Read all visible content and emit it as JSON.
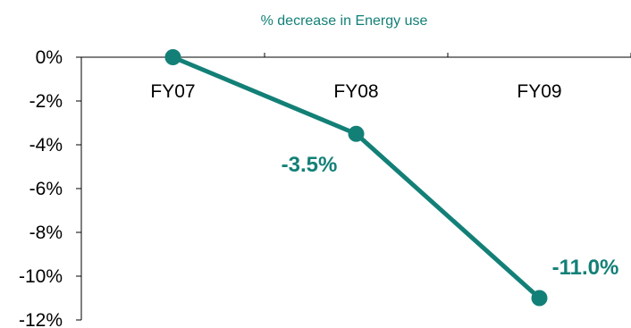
{
  "chart_data": {
    "type": "line",
    "title": "% decrease in Energy use",
    "categories": [
      "FY07",
      "FY08",
      "FY09"
    ],
    "series": [
      {
        "values": [
          0.0,
          -3.5,
          -11.0
        ],
        "labels": [
          "",
          "-3.5%",
          "-11.0%"
        ]
      }
    ],
    "yticks": [
      "0%",
      "-2%",
      "-4%",
      "-6%",
      "-8%",
      "-10%",
      "-12%"
    ],
    "ylim": [
      -12,
      0
    ],
    "grid": false,
    "legend": "none"
  },
  "colors": {
    "series": "#138077",
    "title": "#138077",
    "axis": "#000000"
  }
}
